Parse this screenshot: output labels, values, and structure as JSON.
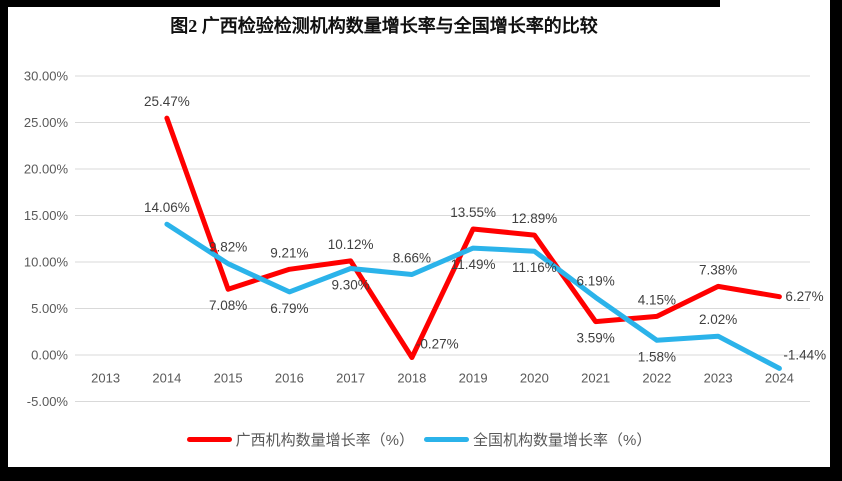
{
  "title": "图2 广西检验检测机构数量增长率与全国增长率的比较",
  "colors": {
    "guangxi_series": "#FF0000",
    "national_series": "#2BB3EA",
    "gridline": "#D9D9D9",
    "axis_text": "#595959",
    "data_label_text": "#404040",
    "frame": "#000000"
  },
  "chart_data": {
    "type": "line",
    "title": "图2 广西检验检测机构数量增长率与全国增长率的比较",
    "xlabel": "",
    "ylabel": "",
    "grid": true,
    "legend_position": "bottom",
    "ylim": [
      -5,
      30
    ],
    "grid_color": "#D9D9D9",
    "categories": [
      "2013",
      "2014",
      "2015",
      "2016",
      "2017",
      "2018",
      "2019",
      "2020",
      "2021",
      "2022",
      "2023",
      "2024"
    ],
    "yticks": [
      {
        "value": 30,
        "label": "30.00%"
      },
      {
        "value": 25,
        "label": "25.00%"
      },
      {
        "value": 20,
        "label": "20.00%"
      },
      {
        "value": 15,
        "label": "15.00%"
      },
      {
        "value": 10,
        "label": "10.00%"
      },
      {
        "value": 5,
        "label": "5.00%"
      },
      {
        "value": 0,
        "label": "0.00%"
      },
      {
        "value": -5,
        "label": "-5.00%"
      }
    ],
    "series": [
      {
        "name": "广西机构数量增长率（%）",
        "color": "#FF0000",
        "values": [
          null,
          25.47,
          7.08,
          9.21,
          10.12,
          -0.27,
          13.55,
          12.89,
          3.59,
          4.15,
          7.38,
          6.27
        ],
        "labels": [
          null,
          "25.47%",
          "7.08%",
          "9.21%",
          "10.12%",
          "-0.27%",
          "13.55%",
          "12.89%",
          "3.59%",
          "4.15%",
          "7.38%",
          "6.27%"
        ],
        "label_pos": [
          null,
          "above",
          "below",
          "above",
          "above",
          "above-right",
          "above",
          "above",
          "below",
          "above",
          "above",
          "right"
        ]
      },
      {
        "name": "全国机构数量增长率（%）",
        "color": "#2BB3EA",
        "values": [
          null,
          14.06,
          9.82,
          6.79,
          9.3,
          8.66,
          11.49,
          11.16,
          6.19,
          1.58,
          2.02,
          -1.44
        ],
        "labels": [
          null,
          "14.06%",
          "9.82%",
          "6.79%",
          "9.30%",
          "8.66%",
          "11.49%",
          "11.16%",
          "6.19%",
          "1.58%",
          "2.02%",
          "-1.44%"
        ],
        "label_pos": [
          null,
          "above",
          "above",
          "below",
          "below",
          "above",
          "below",
          "below",
          "above",
          "below",
          "above",
          "above-right"
        ]
      }
    ]
  }
}
